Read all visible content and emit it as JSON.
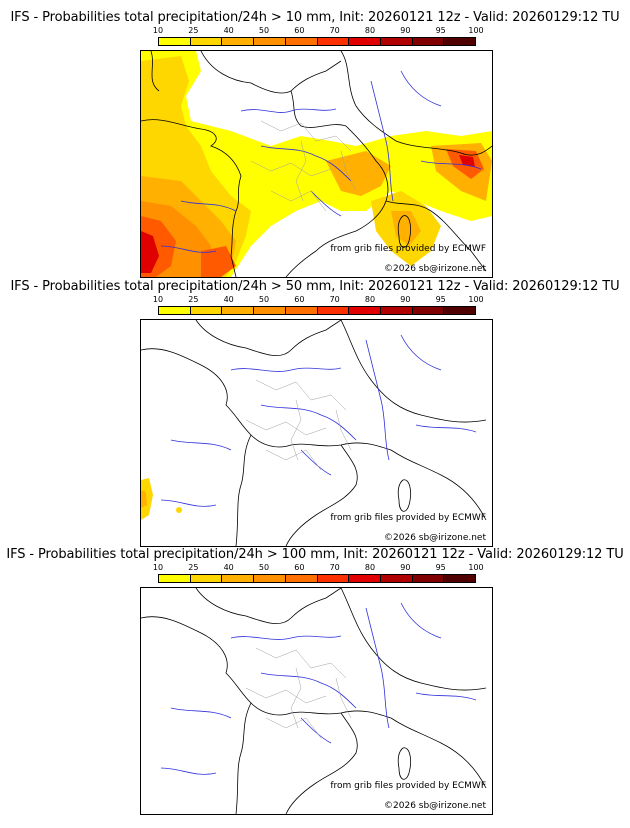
{
  "colors": {
    "scale": [
      "#ffff00",
      "#ffd700",
      "#ffb000",
      "#ff9000",
      "#ff7000",
      "#ff3000",
      "#e00000",
      "#b00000",
      "#800000",
      "#500000"
    ],
    "rivers": "#3030dd",
    "borders": "#000000",
    "admin": "#a0a0a0"
  },
  "legend": {
    "ticks": [
      "10",
      "25",
      "40",
      "50",
      "60",
      "70",
      "80",
      "90",
      "95",
      "100"
    ]
  },
  "panels": [
    {
      "title": "IFS - Probabilities total precipitation/24h > 10 mm, Init: 20260121 12z - Valid: 20260129:12 TU",
      "credit_source": "from grib files provided by ECMWF",
      "credit_copyright": "©2026 sb@irizone.net"
    },
    {
      "title": "IFS - Probabilities total precipitation/24h > 50 mm, Init: 20260121 12z - Valid: 20260129:12 TU",
      "credit_source": "from grib files provided by ECMWF",
      "credit_copyright": "©2026 sb@irizone.net"
    },
    {
      "title": "IFS - Probabilities total precipitation/24h > 100 mm, Init: 20260121 12z - Valid: 20260129:12 TU",
      "credit_source": "from grib files provided by ECMWF",
      "credit_copyright": "©2026 sb@irizone.net"
    }
  ]
}
